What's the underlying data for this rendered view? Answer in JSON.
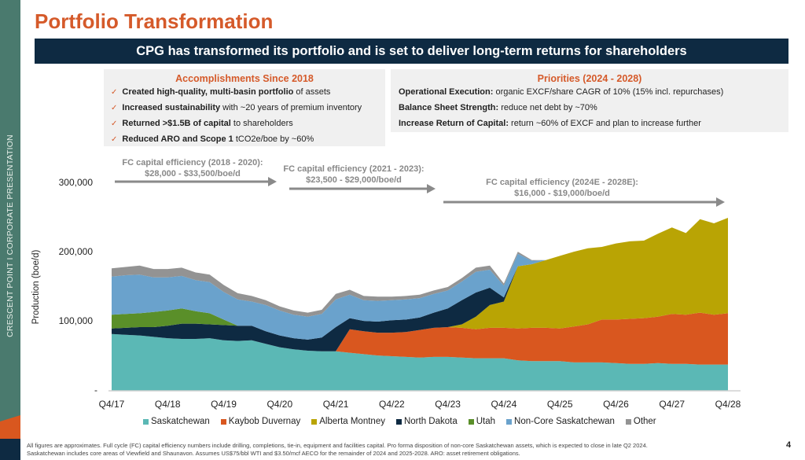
{
  "sidebar": {
    "text": "CRESCENT POINT   I   CORPORATE PRESENTATION",
    "colors": {
      "bar": "#4a7a6e",
      "accent": "#d9571f",
      "navy": "#0e2a42"
    }
  },
  "header": {
    "title": "Portfolio Transformation",
    "banner": "CPG has transformed its portfolio and is set to deliver long-term returns for shareholders"
  },
  "accomplishments": {
    "title": "Accomplishments Since 2018",
    "items": [
      {
        "bold": "Created high-quality, multi-basin portfolio",
        "rest": " of assets"
      },
      {
        "bold": "Increased sustainability",
        "rest": " with ~20 years of premium inventory"
      },
      {
        "bold": "Returned >$1.5B of capital",
        "rest": " to shareholders"
      },
      {
        "bold": "Reduced ARO and Scope 1",
        "rest": " tCO2e/boe by ~60%"
      }
    ]
  },
  "priorities": {
    "title": "Priorities (2024 - 2028)",
    "items": [
      {
        "bold": "Operational Execution:",
        "rest": " organic EXCF/share CAGR of 10% (15% incl. repurchases)"
      },
      {
        "bold": "Balance Sheet Strength:",
        "rest": " reduce net debt by ~70%"
      },
      {
        "bold": "Increase Return of Capital:",
        "rest": " return ~60% of EXCF and plan to increase further"
      }
    ]
  },
  "annotations": [
    {
      "line1": "FC capital efficiency (2018 - 2020):",
      "line2": "$28,000 - $33,500/boe/d",
      "from": "Q4/17",
      "to": "Q4/20"
    },
    {
      "line1": "FC capital efficiency (2021 - 2023):",
      "line2": "$23,500 - $29,000/boe/d",
      "from": "Q4/20",
      "to": "Q3/23"
    },
    {
      "line1": "FC capital efficiency (2024E - 2028E):",
      "line2": "$16,000 - $19,000/boe/d",
      "from": "Q3/23",
      "to": "Q4/28"
    }
  ],
  "chart_data": {
    "type": "area",
    "stacked": true,
    "title": "",
    "xlabel": "",
    "ylabel": "Production (boe/d)",
    "ylim": [
      0,
      300000
    ],
    "yticks": [
      {
        "value": 0,
        "label": "-"
      },
      {
        "value": 100000,
        "label": "100,000"
      },
      {
        "value": 200000,
        "label": "200,000"
      },
      {
        "value": 300000,
        "label": "300,000"
      }
    ],
    "xtick_labels": [
      "Q4/17",
      "Q4/18",
      "Q4/19",
      "Q4/20",
      "Q4/21",
      "Q4/22",
      "Q4/23",
      "Q4/24",
      "Q4/25",
      "Q4/26",
      "Q4/27",
      "Q4/28"
    ],
    "quarters_count": 45,
    "legend_position": "bottom",
    "series": [
      {
        "name": "Saskatchewan",
        "color": "#5bb8b5",
        "values": [
          82000,
          81000,
          80000,
          78000,
          76000,
          75000,
          75000,
          76000,
          73000,
          72000,
          73000,
          68000,
          63000,
          60000,
          58000,
          57000,
          57000,
          55000,
          53000,
          51000,
          50000,
          49000,
          48000,
          49000,
          49000,
          48000,
          47000,
          47000,
          47000,
          44000,
          43000,
          43000,
          43000,
          41000,
          41000,
          41000,
          40000,
          39000,
          39000,
          40000,
          39000,
          39000,
          38000,
          38000,
          38000
        ]
      },
      {
        "name": "Kaybob Duvernay",
        "color": "#d9571f",
        "values": [
          0,
          0,
          0,
          0,
          0,
          0,
          0,
          0,
          0,
          0,
          0,
          0,
          0,
          0,
          0,
          0,
          0,
          34000,
          33000,
          33000,
          34000,
          36000,
          40000,
          42000,
          43000,
          43000,
          42000,
          44000,
          44000,
          46000,
          48000,
          48000,
          47000,
          52000,
          55000,
          62000,
          63000,
          65000,
          66000,
          67000,
          72000,
          71000,
          75000,
          72000,
          74000
        ]
      },
      {
        "name": "Alberta Montney",
        "color": "#b9a404",
        "values": [
          0,
          0,
          0,
          0,
          0,
          0,
          0,
          0,
          0,
          0,
          0,
          0,
          0,
          0,
          0,
          0,
          0,
          0,
          0,
          0,
          0,
          0,
          0,
          0,
          0,
          5000,
          18000,
          33000,
          38000,
          90000,
          92000,
          98000,
          105000,
          108000,
          110000,
          105000,
          110000,
          112000,
          112000,
          120000,
          125000,
          118000,
          135000,
          132000,
          138000
        ]
      },
      {
        "name": "North Dakota",
        "color": "#0e2a42",
        "values": [
          8000,
          10000,
          12000,
          14000,
          18000,
          22000,
          22000,
          20000,
          22000,
          22000,
          21000,
          18000,
          17000,
          16000,
          16000,
          20000,
          35000,
          16000,
          15000,
          16000,
          18000,
          18000,
          18000,
          22000,
          27000,
          35000,
          35000,
          25000,
          6000,
          0,
          0,
          0,
          0,
          0,
          0,
          0,
          0,
          0,
          0,
          0,
          0,
          0,
          0,
          0,
          0
        ]
      },
      {
        "name": "Utah",
        "color": "#5a8f29",
        "values": [
          20000,
          20000,
          20000,
          22000,
          22000,
          22000,
          18000,
          16000,
          8000,
          0,
          0,
          0,
          0,
          0,
          0,
          0,
          0,
          0,
          0,
          0,
          0,
          0,
          0,
          0,
          0,
          0,
          0,
          0,
          0,
          0,
          0,
          0,
          0,
          0,
          0,
          0,
          0,
          0,
          0,
          0,
          0,
          0,
          0,
          0,
          0
        ]
      },
      {
        "name": "Non-Core Saskatchewan",
        "color": "#6aa2cc",
        "values": [
          55000,
          56000,
          56000,
          50000,
          48000,
          47000,
          45000,
          45000,
          40000,
          38000,
          35000,
          38000,
          36000,
          34000,
          33000,
          34000,
          40000,
          34000,
          30000,
          30000,
          29000,
          29000,
          28000,
          27000,
          26000,
          27000,
          30000,
          26000,
          17000,
          18000,
          5000,
          0,
          0,
          0,
          0,
          0,
          0,
          0,
          0,
          0,
          0,
          0,
          0,
          0,
          0
        ]
      },
      {
        "name": "Other",
        "color": "#939393",
        "values": [
          12000,
          12000,
          13000,
          12000,
          12000,
          12000,
          11000,
          11000,
          10000,
          9000,
          8000,
          7000,
          6000,
          6000,
          6000,
          6000,
          8000,
          7000,
          6000,
          6000,
          5000,
          5000,
          5000,
          5000,
          5000,
          5000,
          6000,
          6000,
          3000,
          3000,
          1000,
          0,
          0,
          0,
          0,
          0,
          0,
          0,
          0,
          0,
          0,
          0,
          0,
          0,
          0
        ]
      }
    ]
  },
  "footnote": {
    "line1": "All figures are approximates. Full cycle (FC) capital efficiency numbers include drilling, completions, tie-in, equipment and facilities capital. Pro forma disposition of non-core Saskatchewan assets, which is expected to close in late Q2 2024.",
    "line2": "Saskatchewan includes core areas of Viewfield and Shaunavon. Assumes US$75/bbl WTI and $3.50/mcf AECO for the remainder of 2024 and 2025-2028. ARO: asset retirement obligations."
  },
  "page_number": "4"
}
